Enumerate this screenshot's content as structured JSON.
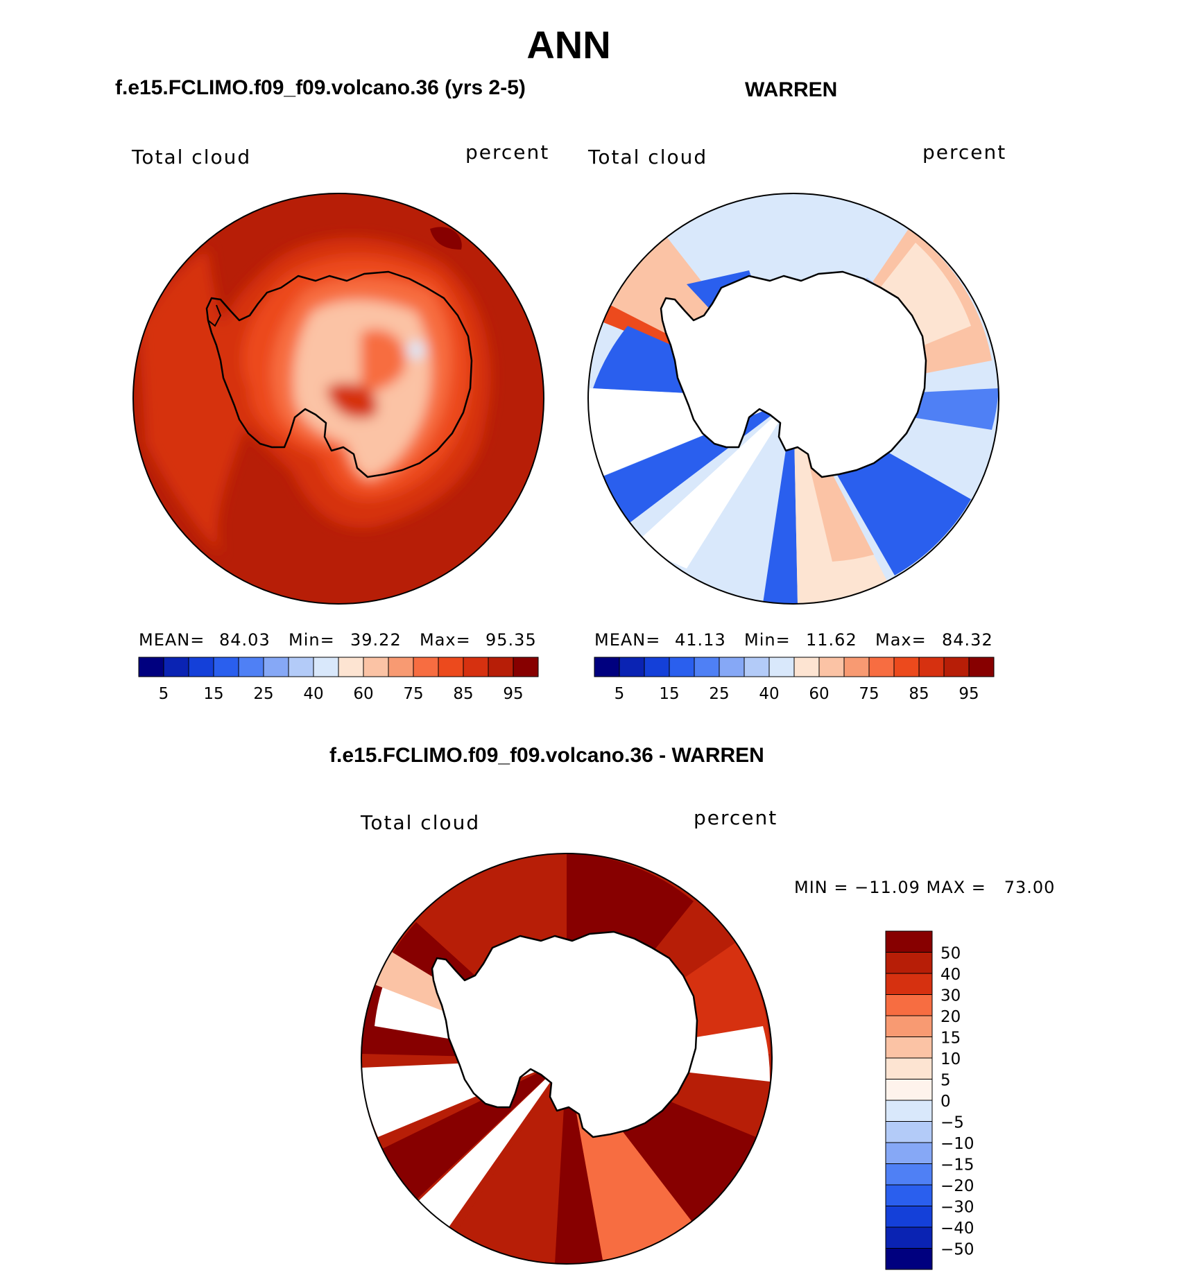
{
  "page": {
    "main_title": "ANN",
    "top_left_title": "f.e15.FCLIMO.f09_f09.volcano.36 (yrs 2-5)",
    "top_right_title": "WARREN",
    "bottom_title": "f.e15.FCLIMO.f09_f09.volcano.36 - WARREN"
  },
  "chart_data": [
    {
      "type": "heatmap",
      "title": "f.e15.FCLIMO.f09_f09.volcano.36 (yrs 2-5)",
      "left_label": "Total cloud",
      "right_label": "percent",
      "stats": {
        "mean_label": "MEAN=",
        "mean": "84.03",
        "min_label": "Min=",
        "min": "39.22",
        "max_label": "Max=",
        "max": "95.35"
      },
      "colorbar_ticks": [
        "5",
        "15",
        "25",
        "40",
        "60",
        "75",
        "85",
        "95"
      ],
      "colorbar_colors": [
        "#00007f",
        "#0a23b3",
        "#1440d9",
        "#2a5fee",
        "#4f80f5",
        "#86a8f6",
        "#b3cbf8",
        "#d9e8fb",
        "#fde4d2",
        "#fbc3a5",
        "#f89a72",
        "#f76d41",
        "#ec4a1d",
        "#d63110",
        "#b71e07",
        "#870000"
      ]
    },
    {
      "type": "heatmap",
      "title": "WARREN",
      "left_label": "Total cloud",
      "right_label": "percent",
      "stats": {
        "mean_label": "MEAN=",
        "mean": "41.13",
        "min_label": "Min=",
        "min": "11.62",
        "max_label": "Max=",
        "max": "84.32"
      },
      "colorbar_ticks": [
        "5",
        "15",
        "25",
        "40",
        "60",
        "75",
        "85",
        "95"
      ],
      "colorbar_colors": [
        "#00007f",
        "#0a23b3",
        "#1440d9",
        "#2a5fee",
        "#4f80f5",
        "#86a8f6",
        "#b3cbf8",
        "#d9e8fb",
        "#fde4d2",
        "#fbc3a5",
        "#f89a72",
        "#f76d41",
        "#ec4a1d",
        "#d63110",
        "#b71e07",
        "#870000"
      ]
    },
    {
      "type": "heatmap",
      "title": "f.e15.FCLIMO.f09_f09.volcano.36 - WARREN",
      "left_label": "Total cloud",
      "right_label": "percent",
      "stats_line": "MIN = −11.09 MAX =   73.00",
      "colorbar_ticks": [
        "50",
        "40",
        "30",
        "20",
        "15",
        "10",
        "5",
        "0",
        "−5",
        "−10",
        "−15",
        "−20",
        "−30",
        "−40",
        "−50"
      ],
      "colorbar_colors": [
        "#870000",
        "#b71e07",
        "#d63110",
        "#f76d41",
        "#f89a72",
        "#fbc3a5",
        "#fde4d2",
        "#fef3ec",
        "#d9e8fb",
        "#b3cbf8",
        "#86a8f6",
        "#4f80f5",
        "#2a5fee",
        "#1440d9",
        "#0a23b3",
        "#00007f"
      ]
    }
  ]
}
